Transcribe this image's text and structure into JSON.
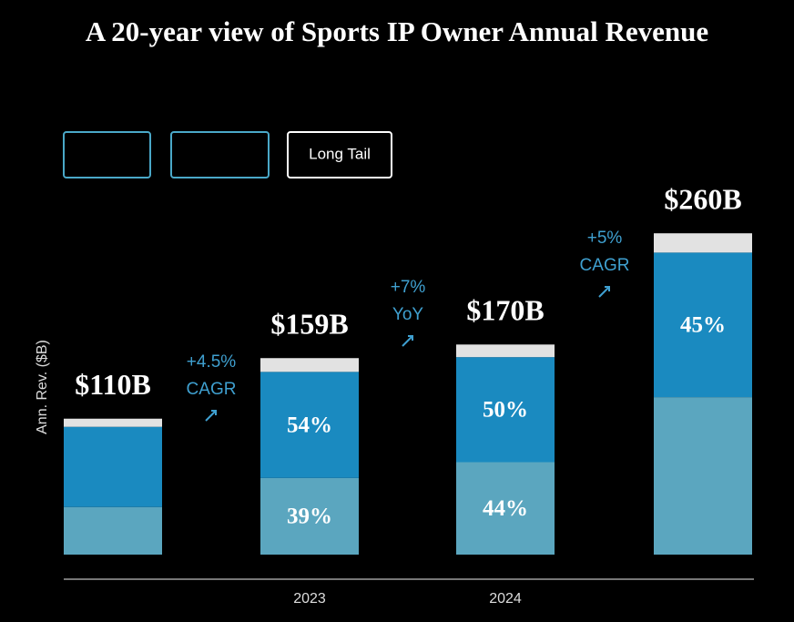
{
  "chart_data": {
    "type": "stacked-bar",
    "title": "A 20-year view of Sports IP Owner Annual Revenue",
    "y_label": "Ann. Rev. ($B)",
    "categories": [
      null,
      "2023",
      "2024",
      null
    ],
    "totals": {
      "values": [
        110,
        159,
        170,
        260
      ],
      "value_labels": [
        "$110B",
        "$159B",
        "$170B",
        "$260B"
      ]
    },
    "series": [
      {
        "color": "#5ba6bf",
        "values": [
          35,
          39,
          44,
          49
        ],
        "value_labels": [
          null,
          "39%",
          "44%",
          null
        ]
      },
      {
        "color": "#1a8ac0",
        "values": [
          59,
          54,
          50,
          45
        ],
        "value_labels": [
          null,
          "54%",
          "50%",
          "45%"
        ]
      },
      {
        "name": "Long Tail",
        "color": "#e2e2e2",
        "values": [
          6,
          7,
          6,
          6
        ]
      }
    ],
    "annotations": [
      {
        "text": [
          "+4.5%",
          "CAGR"
        ]
      },
      {
        "text": [
          "+7%",
          "YoY"
        ]
      },
      {
        "text": [
          "+5%",
          "CAGR"
        ]
      }
    ]
  }
}
